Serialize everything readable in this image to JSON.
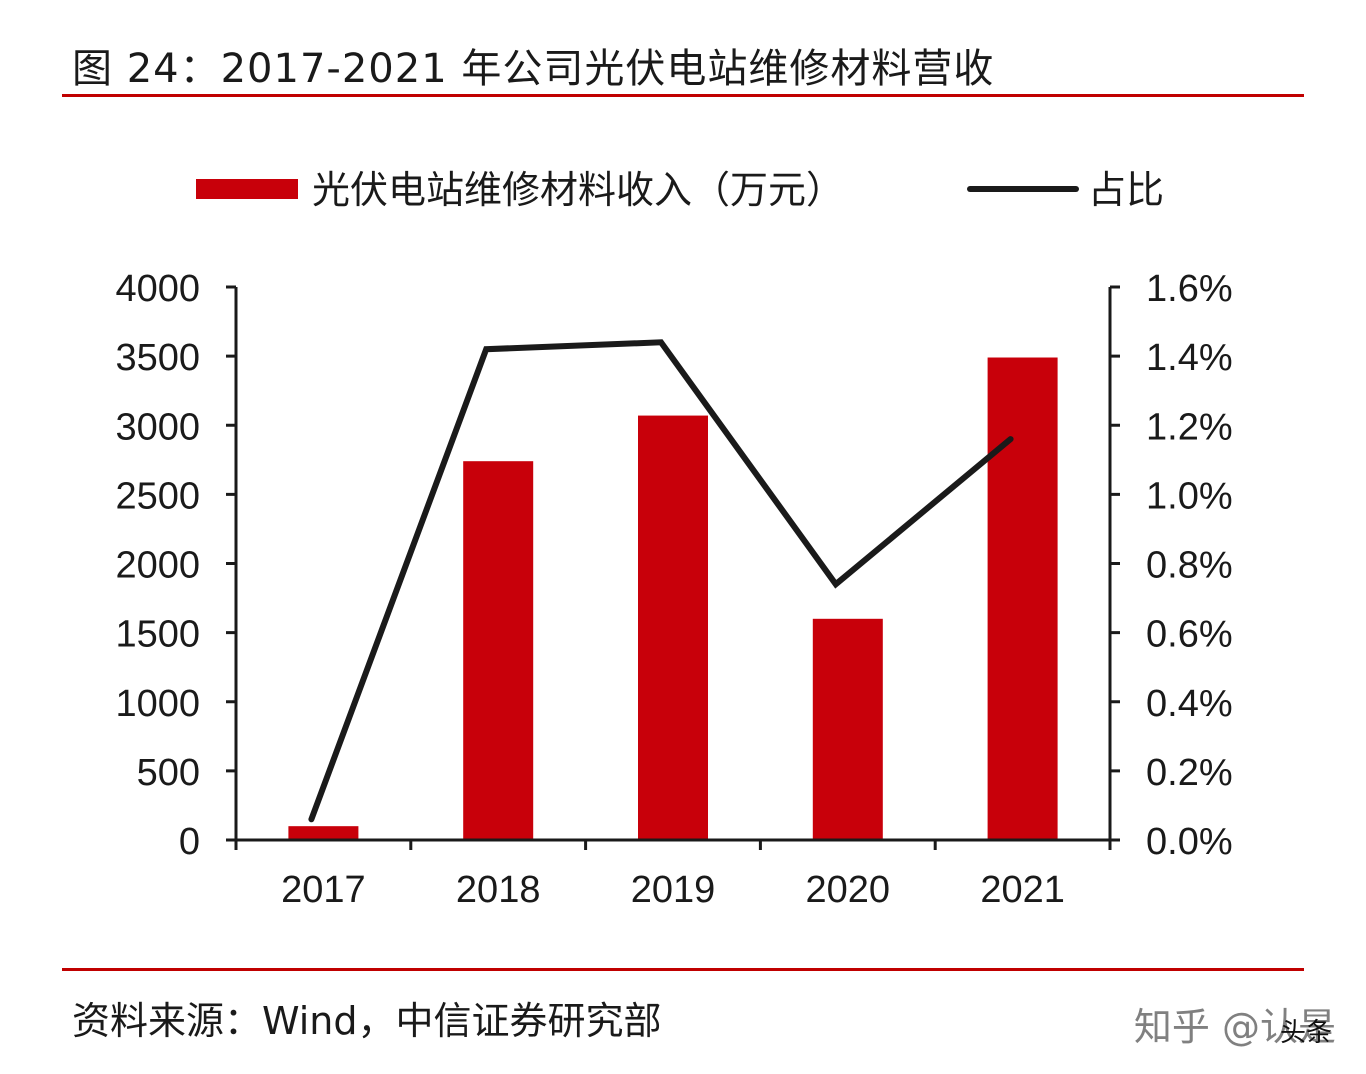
{
  "figure": {
    "title": "图 24：2017-2021 年公司光伏电站维修材料营收",
    "source": "资料来源：Wind，中信证券研究部",
    "watermark": "知乎 @认是",
    "watermark_sub": "头条"
  },
  "colors": {
    "bar": "#c8000a",
    "line": "#1a1a1a",
    "rule": "#c00000"
  },
  "chart_data": {
    "type": "bar",
    "categories": [
      "2017",
      "2018",
      "2019",
      "2020",
      "2021"
    ],
    "series": [
      {
        "name": "光伏电站维修材料收入（万元）",
        "type": "bar",
        "axis": "left",
        "values": [
          100,
          2740,
          3070,
          1600,
          3490
        ]
      },
      {
        "name": "占比",
        "type": "line",
        "axis": "right",
        "values": [
          0.06,
          1.42,
          1.44,
          0.74,
          1.16
        ]
      }
    ],
    "y_left": {
      "min": 0,
      "max": 4000,
      "ticks": [
        "0",
        "500",
        "1000",
        "1500",
        "2000",
        "2500",
        "3000",
        "3500",
        "4000"
      ]
    },
    "y_right": {
      "min": 0,
      "max": 1.6,
      "ticks": [
        "0.0%",
        "0.2%",
        "0.4%",
        "0.6%",
        "0.8%",
        "1.0%",
        "1.2%",
        "1.4%",
        "1.6%"
      ]
    },
    "legend_position": "top",
    "grid": false
  }
}
